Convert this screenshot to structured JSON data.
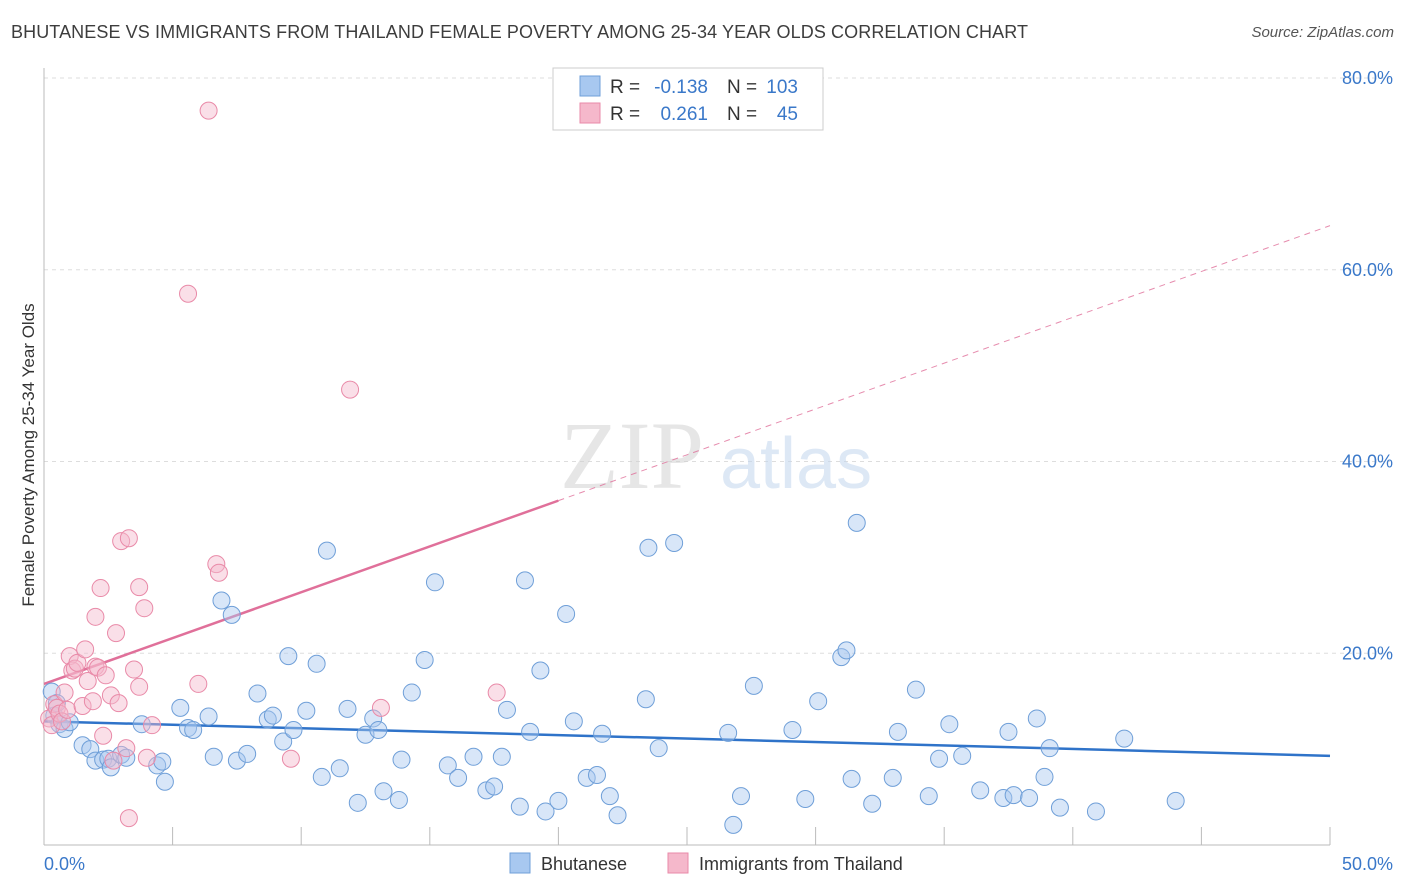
{
  "title": "BHUTANESE VS IMMIGRANTS FROM THAILAND FEMALE POVERTY AMONG 25-34 YEAR OLDS CORRELATION CHART",
  "source": "Source: ZipAtlas.com",
  "watermark": {
    "zip": "ZIP",
    "atlas": "atlas"
  },
  "colors": {
    "blue_fill": "#a8c8f0",
    "blue_stroke": "#6f9fd8",
    "blue_line": "#2f73c9",
    "pink_fill": "#f5b8cb",
    "pink_stroke": "#e98aa8",
    "pink_line": "#e0709a",
    "tick_label": "#3a78c9",
    "grid": "#dddddd",
    "axis_title": "#333333"
  },
  "legend": {
    "rows": [
      {
        "r_label": "R =",
        "r_value": "-0.138",
        "n_label": "N =",
        "n_value": "103"
      },
      {
        "r_label": "R =",
        "r_value": "0.261",
        "n_label": "N =",
        "n_value": "45"
      }
    ]
  },
  "chart_data": {
    "type": "scatter",
    "title": "BHUTANESE VS IMMIGRANTS FROM THAILAND FEMALE POVERTY AMONG 25-34 YEAR OLDS CORRELATION CHART",
    "xlabel": "",
    "ylabel": "Female Poverty Among 25-34 Year Olds",
    "xlim": [
      0,
      50
    ],
    "ylim": [
      0,
      80
    ],
    "x_tick_labels": [
      {
        "value": 0,
        "label": "0.0%"
      },
      {
        "value": 50,
        "label": "50.0%"
      }
    ],
    "y_tick_labels": [
      {
        "value": 20,
        "label": "20.0%"
      },
      {
        "value": 40,
        "label": "40.0%"
      },
      {
        "value": 60,
        "label": "60.0%"
      },
      {
        "value": 80,
        "label": "80.0%"
      }
    ],
    "x_minor_ticks": [
      5,
      10,
      15,
      20,
      25,
      30,
      35,
      40,
      45
    ],
    "series": [
      {
        "name": "Bhutanese",
        "color_key": "blue",
        "r": -0.138,
        "n": 103,
        "trend": {
          "x0": 0,
          "y0": 12.9,
          "x1": 50,
          "y1": 9.3,
          "dashed_from": null
        },
        "points": [
          [
            0.3,
            16.0
          ],
          [
            0.4,
            13.5
          ],
          [
            0.5,
            14.8
          ],
          [
            0.6,
            12.6
          ],
          [
            0.8,
            12.1
          ],
          [
            1.0,
            12.8
          ],
          [
            1.5,
            10.4
          ],
          [
            1.8,
            10.0
          ],
          [
            2.0,
            8.8
          ],
          [
            2.3,
            8.9
          ],
          [
            2.5,
            9.0
          ],
          [
            2.6,
            8.1
          ],
          [
            3.0,
            9.4
          ],
          [
            3.2,
            9.1
          ],
          [
            3.8,
            12.6
          ],
          [
            4.4,
            8.3
          ],
          [
            4.6,
            8.7
          ],
          [
            4.7,
            6.6
          ],
          [
            5.3,
            14.3
          ],
          [
            5.6,
            12.2
          ],
          [
            5.8,
            12.0
          ],
          [
            6.4,
            13.4
          ],
          [
            6.6,
            9.2
          ],
          [
            6.9,
            25.5
          ],
          [
            7.3,
            24.0
          ],
          [
            7.5,
            8.8
          ],
          [
            7.9,
            9.5
          ],
          [
            8.3,
            15.8
          ],
          [
            8.7,
            13.1
          ],
          [
            8.9,
            13.5
          ],
          [
            9.3,
            10.8
          ],
          [
            9.5,
            19.7
          ],
          [
            9.7,
            12.0
          ],
          [
            10.2,
            14.0
          ],
          [
            10.6,
            18.9
          ],
          [
            10.8,
            7.1
          ],
          [
            11.0,
            30.7
          ],
          [
            11.5,
            8.0
          ],
          [
            11.8,
            14.2
          ],
          [
            12.2,
            4.4
          ],
          [
            12.5,
            11.5
          ],
          [
            12.8,
            13.2
          ],
          [
            13.0,
            12.0
          ],
          [
            13.2,
            5.6
          ],
          [
            13.8,
            4.7
          ],
          [
            13.9,
            8.9
          ],
          [
            14.3,
            15.9
          ],
          [
            14.8,
            19.3
          ],
          [
            15.2,
            27.4
          ],
          [
            15.7,
            8.3
          ],
          [
            16.1,
            7.0
          ],
          [
            16.7,
            9.2
          ],
          [
            17.2,
            5.7
          ],
          [
            17.5,
            6.1
          ],
          [
            17.8,
            9.2
          ],
          [
            18.0,
            14.1
          ],
          [
            18.5,
            4.0
          ],
          [
            18.7,
            27.6
          ],
          [
            18.9,
            11.8
          ],
          [
            19.3,
            18.2
          ],
          [
            19.5,
            3.5
          ],
          [
            20.0,
            4.6
          ],
          [
            20.3,
            24.1
          ],
          [
            20.6,
            12.9
          ],
          [
            21.1,
            7.0
          ],
          [
            21.5,
            7.3
          ],
          [
            21.7,
            11.6
          ],
          [
            22.0,
            5.1
          ],
          [
            22.3,
            3.1
          ],
          [
            23.4,
            15.2
          ],
          [
            23.5,
            31.0
          ],
          [
            23.9,
            10.1
          ],
          [
            24.5,
            31.5
          ],
          [
            26.6,
            11.7
          ],
          [
            26.8,
            2.1
          ],
          [
            27.1,
            5.1
          ],
          [
            27.6,
            16.6
          ],
          [
            29.1,
            12.0
          ],
          [
            29.6,
            4.8
          ],
          [
            30.1,
            15.0
          ],
          [
            31.0,
            19.6
          ],
          [
            31.2,
            20.3
          ],
          [
            31.4,
            6.9
          ],
          [
            31.6,
            33.6
          ],
          [
            32.2,
            4.3
          ],
          [
            33.0,
            7.0
          ],
          [
            33.2,
            11.8
          ],
          [
            33.9,
            16.2
          ],
          [
            34.4,
            5.1
          ],
          [
            34.8,
            9.0
          ],
          [
            35.2,
            12.6
          ],
          [
            35.7,
            9.3
          ],
          [
            36.4,
            5.7
          ],
          [
            37.3,
            4.9
          ],
          [
            37.5,
            11.8
          ],
          [
            37.7,
            5.2
          ],
          [
            38.3,
            4.9
          ],
          [
            38.6,
            13.2
          ],
          [
            38.9,
            7.1
          ],
          [
            39.1,
            10.1
          ],
          [
            39.5,
            3.9
          ],
          [
            40.9,
            3.5
          ],
          [
            42.0,
            11.1
          ],
          [
            44.0,
            4.6
          ]
        ]
      },
      {
        "name": "Immigrants from Thailand",
        "color_key": "pink",
        "r": 0.261,
        "n": 45,
        "trend": {
          "x0": 0,
          "y0": 16.8,
          "x1": 50,
          "y1": 64.6,
          "dashed_from": 20
        },
        "points": [
          [
            0.2,
            13.2
          ],
          [
            0.3,
            12.5
          ],
          [
            0.4,
            14.7
          ],
          [
            0.5,
            14.3
          ],
          [
            0.6,
            13.7
          ],
          [
            0.7,
            12.9
          ],
          [
            0.8,
            15.9
          ],
          [
            0.9,
            14.1
          ],
          [
            1.0,
            19.7
          ],
          [
            1.1,
            18.2
          ],
          [
            1.2,
            18.4
          ],
          [
            1.3,
            19.0
          ],
          [
            1.5,
            14.5
          ],
          [
            1.6,
            20.4
          ],
          [
            1.7,
            17.1
          ],
          [
            1.9,
            15.0
          ],
          [
            2.0,
            18.6
          ],
          [
            2.0,
            23.8
          ],
          [
            2.1,
            18.5
          ],
          [
            2.2,
            26.8
          ],
          [
            2.3,
            11.4
          ],
          [
            2.4,
            17.7
          ],
          [
            2.6,
            15.6
          ],
          [
            2.7,
            8.8
          ],
          [
            2.8,
            22.1
          ],
          [
            2.9,
            14.8
          ],
          [
            3.0,
            31.7
          ],
          [
            3.2,
            10.1
          ],
          [
            3.3,
            32.0
          ],
          [
            3.3,
            2.8
          ],
          [
            3.5,
            18.3
          ],
          [
            3.7,
            16.5
          ],
          [
            3.7,
            26.9
          ],
          [
            3.9,
            24.7
          ],
          [
            4.0,
            9.1
          ],
          [
            4.2,
            12.5
          ],
          [
            5.6,
            57.5
          ],
          [
            6.0,
            16.8
          ],
          [
            6.4,
            76.6
          ],
          [
            6.7,
            29.3
          ],
          [
            6.8,
            28.4
          ],
          [
            9.6,
            9.0
          ],
          [
            11.9,
            47.5
          ],
          [
            13.1,
            14.3
          ],
          [
            17.6,
            15.9
          ]
        ]
      }
    ],
    "legend": [
      "Bhutanese",
      "Immigrants from Thailand"
    ]
  }
}
